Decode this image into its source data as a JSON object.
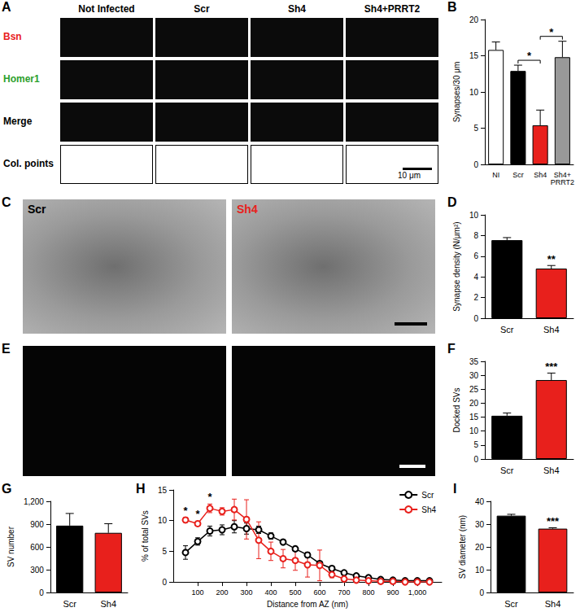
{
  "figure": {
    "A": {
      "letter": "A",
      "columns": [
        "Not Infected",
        "Scr",
        "Sh4",
        "Sh4+PRRT2"
      ],
      "rows": [
        {
          "label": "Bsn",
          "color": "#e8201c"
        },
        {
          "label": "Homer1",
          "color": "#2ca02c"
        },
        {
          "label": "Merge",
          "color": "#000000"
        },
        {
          "label": "Col. points",
          "color": "#000000"
        }
      ],
      "scale_bar": "10 μm"
    },
    "C": {
      "letter": "C",
      "images": [
        {
          "label": "Scr",
          "color": "#000000"
        },
        {
          "label": "Sh4",
          "color": "#e8201c"
        }
      ]
    },
    "E": {
      "letter": "E"
    }
  },
  "chart_data": [
    {
      "panel": "B",
      "type": "bar",
      "categories": [
        "NI",
        "Scr",
        "Sh4",
        "Sh4+PRRT2"
      ],
      "values": [
        15.8,
        12.9,
        5.4,
        14.8
      ],
      "errors": [
        1.1,
        0.8,
        2.1,
        2.2
      ],
      "colors": [
        "#ffffff",
        "#000000",
        "#e8201c",
        "#999999"
      ],
      "y_label": "Synapses/30 μm",
      "ylim": [
        0,
        20
      ],
      "yticks": [
        0,
        5,
        10,
        15,
        20
      ],
      "grid": false,
      "annotations": [
        {
          "text": "*",
          "from": "Scr",
          "to": "Sh4"
        },
        {
          "text": "*",
          "from": "Sh4",
          "to": "Sh4+PRRT2"
        }
      ]
    },
    {
      "panel": "D",
      "type": "bar",
      "categories": [
        "Scr",
        "Sh4"
      ],
      "values": [
        7.55,
        4.8
      ],
      "errors": [
        0.25,
        0.3
      ],
      "colors": [
        "#000000",
        "#e8201c"
      ],
      "y_label": "Synapse density (N/μm²)",
      "ylim": [
        0,
        10
      ],
      "yticks": [
        0,
        2,
        4,
        6,
        8,
        10
      ],
      "grid": false,
      "annotations": [
        {
          "text": "**",
          "at": "Sh4"
        }
      ]
    },
    {
      "panel": "F",
      "type": "bar",
      "categories": [
        "Scr",
        "Sh4"
      ],
      "values": [
        15.5,
        28.3
      ],
      "errors": [
        1.0,
        2.5
      ],
      "colors": [
        "#000000",
        "#e8201c"
      ],
      "y_label": "Docked SVs",
      "ylim": [
        0,
        35
      ],
      "yticks": [
        0,
        5,
        10,
        15,
        20,
        25,
        30,
        35
      ],
      "grid": false,
      "annotations": [
        {
          "text": "***",
          "at": "Sh4"
        }
      ]
    },
    {
      "panel": "G",
      "type": "bar",
      "categories": [
        "Scr",
        "Sh4"
      ],
      "values": [
        880,
        785
      ],
      "errors": [
        160,
        120
      ],
      "colors": [
        "#000000",
        "#e8201c"
      ],
      "y_label": "SV number",
      "ylim": [
        0,
        1200
      ],
      "yticks": [
        0,
        300,
        600,
        900,
        1200
      ],
      "grid": false,
      "annotations": []
    },
    {
      "panel": "H",
      "type": "line",
      "x": [
        50,
        100,
        150,
        200,
        250,
        300,
        350,
        400,
        450,
        500,
        550,
        600,
        650,
        700,
        750,
        800,
        850,
        900,
        950,
        1000,
        1050
      ],
      "series": [
        {
          "name": "Scr",
          "color": "#000000",
          "marker": "open_circle",
          "values": [
            4.8,
            6.6,
            8.3,
            8.5,
            9.0,
            8.7,
            8.5,
            7.5,
            6.5,
            5.4,
            4.4,
            3.0,
            2.2,
            1.5,
            1.0,
            0.7,
            0.4,
            0.3,
            0.2,
            0.2,
            0.2
          ],
          "errors": [
            1.1,
            0.6,
            0.8,
            0.8,
            1.0,
            0.9,
            0.6,
            0.5,
            0.4,
            0.4,
            0.4,
            0.3,
            0.3,
            0.3,
            0.2,
            0.2,
            0.1,
            0.1,
            0.1,
            0.1,
            0.1
          ]
        },
        {
          "name": "Sh4",
          "color": "#e8201c",
          "marker": "open_circle",
          "values": [
            10.1,
            9.5,
            12.0,
            11.5,
            11.8,
            10.2,
            6.8,
            5.0,
            3.8,
            3.5,
            2.8,
            2.7,
            1.2,
            0.5,
            0.3,
            0.2,
            0.1,
            0.1,
            0.0,
            0.0,
            0.0
          ],
          "errors": [
            0.4,
            0.4,
            0.7,
            0.6,
            1.7,
            3.2,
            3.0,
            1.5,
            1.5,
            1.6,
            2.0,
            2.5,
            0.5,
            0.3,
            0.2,
            0.1,
            0.1,
            0.1,
            0.0,
            0.0,
            0.0
          ]
        }
      ],
      "x_label": "Distance from AZ (nm)",
      "y_label": "% of total SVs",
      "xlim": [
        0,
        1100
      ],
      "xticks": [
        100,
        200,
        300,
        400,
        500,
        600,
        700,
        800,
        900,
        1000
      ],
      "ylim": [
        0,
        15
      ],
      "yticks": [
        0,
        5,
        10,
        15
      ],
      "grid": false,
      "legend": "upper right",
      "annotations": [
        {
          "text": "*",
          "x": 50
        },
        {
          "text": "*",
          "x": 100
        },
        {
          "text": "*",
          "x": 150
        }
      ]
    },
    {
      "panel": "I",
      "type": "bar",
      "categories": [
        "Scr",
        "Sh4"
      ],
      "values": [
        33.7,
        28.0
      ],
      "errors": [
        0.6,
        0.4
      ],
      "colors": [
        "#000000",
        "#e8201c"
      ],
      "y_label": "SV diameter (nm)",
      "ylim": [
        0,
        40
      ],
      "yticks": [
        0,
        10,
        20,
        30,
        40
      ],
      "grid": false,
      "annotations": [
        {
          "text": "***",
          "at": "Sh4"
        }
      ]
    }
  ]
}
